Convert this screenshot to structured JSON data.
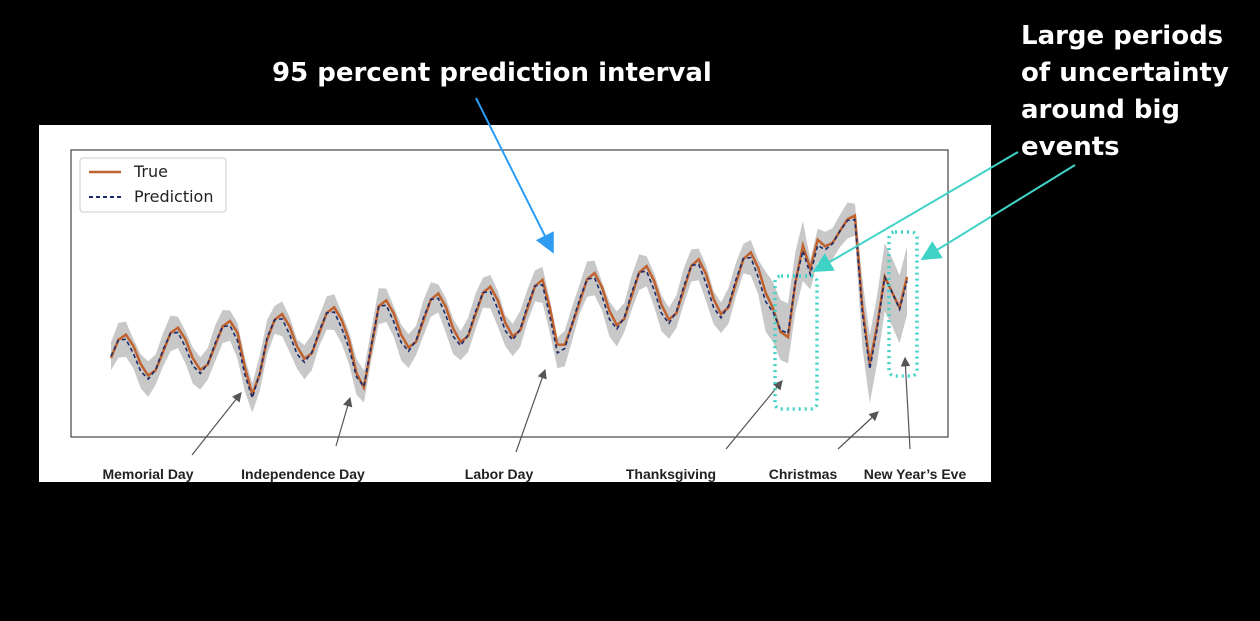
{
  "annotations": {
    "interval_text": "95 percent prediction interval",
    "uncertainty_text": "Large periods of uncertainty around big events"
  },
  "colors": {
    "background": "#000000",
    "panel": "#ffffff",
    "true_line": "#c0622f",
    "prediction_line": "#1b2a6b",
    "interval_band": "#c8c8c8",
    "highlight": "#3fd3c8",
    "arrow_blue": "#2e9cf0",
    "arrow_gray": "#555555"
  },
  "chart_data": {
    "type": "line",
    "title": "",
    "xlabel": "",
    "ylabel": "",
    "axis_ticks": "none",
    "grid": false,
    "legend": {
      "placement": "top-left",
      "entries": [
        "True",
        "Prediction"
      ]
    },
    "x": "day index (daily data, weekly seasonality; ~108 days from late May to early January)",
    "series": [
      {
        "name": "True",
        "style": "solid",
        "color": "#c0622f"
      },
      {
        "name": "Prediction",
        "style": "dashed",
        "color": "#1b2a6b",
        "interval": "95% prediction band (gray)"
      }
    ],
    "pattern": {
      "period_days": 7,
      "trend": "rising from low-level around Memorial Day to a peak before Christmas",
      "dips": [
        "Memorial Day",
        "Independence Day",
        "Labor Day",
        "Thanksgiving",
        "Christmas",
        "New Year's Eve"
      ]
    },
    "events": [
      {
        "label": "Memorial Day"
      },
      {
        "label": "Independence Day"
      },
      {
        "label": "Labor Day"
      },
      {
        "label": "Thanksgiving"
      },
      {
        "label": "Christmas"
      },
      {
        "label": "New Year’s Eve"
      }
    ]
  }
}
